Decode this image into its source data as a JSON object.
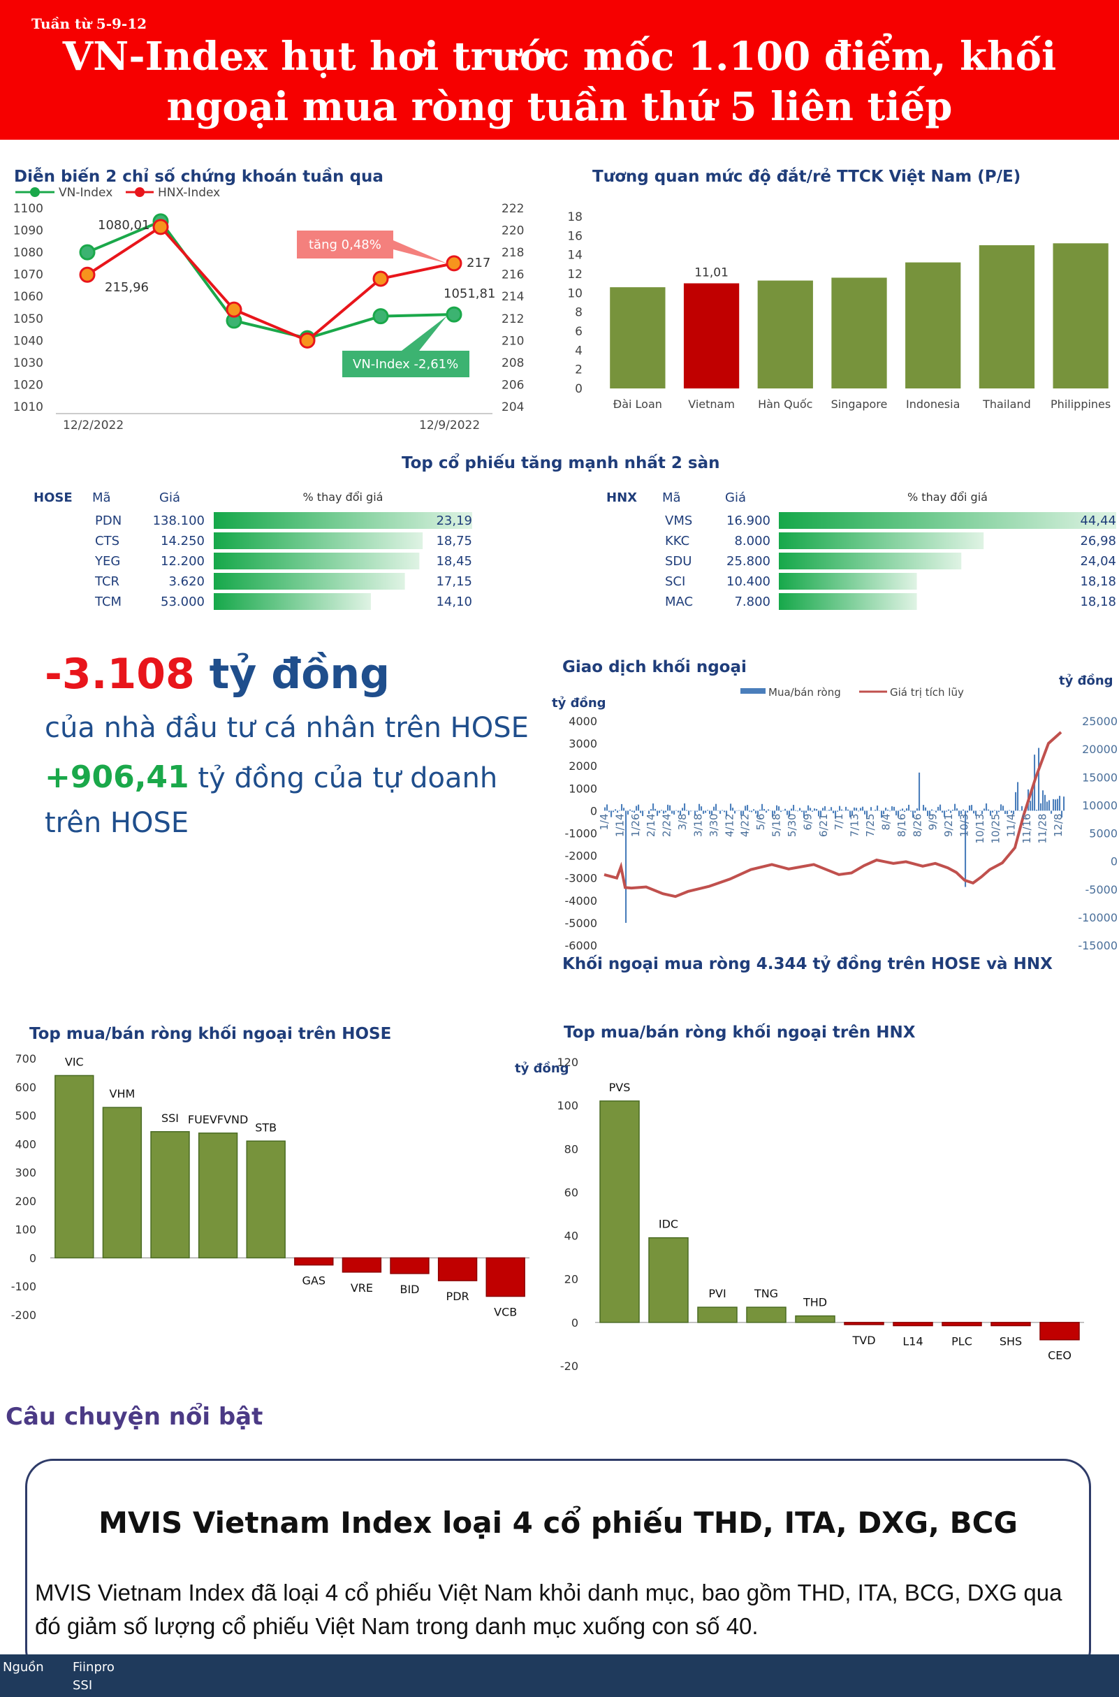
{
  "header": {
    "week": "Tuần từ 5-9-12",
    "title_line1": "VN-Index hụt hơi trước mốc 1.100 điểm, khối",
    "title_line2": "ngoại mua ròng tuần thứ 5 liên tiếp",
    "bg_color": "#f60000"
  },
  "index_chart": {
    "title": "Diễn biến 2 chỉ số chứng khoán tuần qua",
    "legend_vn": "VN-Index",
    "legend_hnx": "HNX-Index",
    "date_start": "12/2/2022",
    "date_end": "12/9/2022",
    "label_vn_start": "1080,01",
    "label_hnx_start": "215,96",
    "label_vn_end": "1051,81",
    "label_hnx_end": "217",
    "callout_hnx": "tăng 0,48%",
    "callout_vn": "VN-Index -2,61%",
    "left_ticks": [
      "1010",
      "1020",
      "1030",
      "1040",
      "1050",
      "1060",
      "1070",
      "1080",
      "1090",
      "1100"
    ],
    "right_ticks": [
      "204",
      "206",
      "208",
      "210",
      "212",
      "214",
      "216",
      "218",
      "220",
      "222"
    ]
  },
  "pe_chart": {
    "title": "Tương quan mức độ đắt/rẻ TTCK Việt Nam (P/E)",
    "value_label": "11,01",
    "ticks": [
      "0",
      "2",
      "4",
      "6",
      "8",
      "10",
      "12",
      "14",
      "16",
      "18"
    ]
  },
  "top_gainers": {
    "title": "Top cổ phiếu tăng mạnh nhất 2 sàn",
    "hose": {
      "exchange": "HOSE",
      "col_code": "Mã",
      "col_price": "Giá",
      "col_change": "% thay đổi giá",
      "rows": [
        {
          "code": "PDN",
          "price": "138.100",
          "change": "23,19",
          "pct": 23.19
        },
        {
          "code": "CTS",
          "price": "14.250",
          "change": "18,75",
          "pct": 18.75
        },
        {
          "code": "YEG",
          "price": "12.200",
          "change": "18,45",
          "pct": 18.45
        },
        {
          "code": "TCR",
          "price": "3.620",
          "change": "17,15",
          "pct": 17.15
        },
        {
          "code": "TCM",
          "price": "53.000",
          "change": "14,10",
          "pct": 14.1
        }
      ]
    },
    "hnx": {
      "exchange": "HNX",
      "col_code": "Mã",
      "col_price": "Giá",
      "col_change": "% thay đổi giá",
      "rows": [
        {
          "code": "VMS",
          "price": "16.900",
          "change": "44,44",
          "pct": 44.44
        },
        {
          "code": "KKC",
          "price": "8.000",
          "change": "26,98",
          "pct": 26.98
        },
        {
          "code": "SDU",
          "price": "25.800",
          "change": "24,04",
          "pct": 24.04
        },
        {
          "code": "SCI",
          "price": "10.400",
          "change": "18,18",
          "pct": 18.18
        },
        {
          "code": "MAC",
          "price": "7.800",
          "change": "18,18",
          "pct": 18.18
        }
      ]
    }
  },
  "highlights": {
    "amount_neg": "-3.108",
    "unit1": "tỷ đồng",
    "line1": "của nhà đầu tư cá nhân trên HOSE",
    "amount_pos": "+906,41",
    "line2a": "tỷ đồng của tự doanh",
    "line2b": "trên HOSE"
  },
  "foreign_flow": {
    "title": "Giao dịch khối ngoại",
    "legend_bar": "Mua/bán ròng",
    "legend_line": "Giá trị tích lũy",
    "unit_left": "tỷ đồng",
    "unit_right": "tỷ đồng",
    "subtitle": "Khối ngoại mua ròng 4.344 tỷ đồng trên HOSE và HNX",
    "left_ticks": [
      "-6000",
      "-5000",
      "-4000",
      "-3000",
      "-2000",
      "-1000",
      "0",
      "1000",
      "2000",
      "3000",
      "4000"
    ],
    "right_ticks": [
      "-15000",
      "-10000",
      "-5000",
      "0",
      "5000",
      "10000",
      "15000",
      "20000",
      "25000"
    ],
    "x_labels": [
      "1/4",
      "1/14",
      "1/26",
      "2/14",
      "2/24",
      "3/8",
      "3/18",
      "3/30",
      "4/12",
      "4/22",
      "5/6",
      "5/18",
      "5/30",
      "6/9",
      "6/21",
      "7/1",
      "7/13",
      "7/25",
      "8/4",
      "8/16",
      "8/26",
      "9/9",
      "9/21",
      "10/3",
      "10/13",
      "10/25",
      "11/4",
      "11/16",
      "11/28",
      "12/8"
    ]
  },
  "hose_foreign": {
    "title": "Top mua/bán ròng khối ngoại trên HOSE",
    "ticks": [
      "-200",
      "-100",
      "0",
      "100",
      "200",
      "300",
      "400",
      "500",
      "600",
      "700"
    ]
  },
  "hnx_foreign": {
    "title": "Top mua/bán ròng khối ngoại trên HNX",
    "unit": "tỷ đồng",
    "ticks": [
      "-20",
      "0",
      "20",
      "40",
      "60",
      "80",
      "100",
      "120"
    ]
  },
  "story": {
    "heading": "Câu chuyện nổi bật",
    "title": "MVIS Vietnam Index loại 4 cổ phiếu THD, ITA, DXG, BCG",
    "body": "MVIS Vietnam Index đã loại 4 cổ phiếu Việt Nam khỏi danh mục, bao gồm THD, ITA, BCG, DXG qua đó giảm số lượng cổ phiếu Việt Nam trong danh mục xuống con số 40."
  },
  "footer": {
    "label": "Nguồn",
    "source1": "Fiinpro",
    "source2": "SSI"
  },
  "chart_data": [
    {
      "type": "line",
      "title": "Diễn biến 2 chỉ số chứng khoán tuần qua",
      "x": [
        "12/2/2022",
        "12/5/2022",
        "12/6/2022",
        "12/7/2022",
        "12/8/2022",
        "12/9/2022"
      ],
      "series": [
        {
          "name": "VN-Index",
          "axis": "left",
          "values": [
            1080.01,
            1094,
            1049,
            1041,
            1051,
            1051.81
          ],
          "color": "#1aa84a"
        },
        {
          "name": "HNX-Index",
          "axis": "right",
          "values": [
            215.96,
            220.3,
            212.8,
            210,
            215.6,
            217
          ],
          "color": "#e8151b"
        }
      ],
      "ylim_left": [
        1010,
        1100
      ],
      "ylim_right": [
        204,
        222
      ]
    },
    {
      "type": "bar",
      "title": "Tương quan mức độ đắt/rẻ TTCK Việt Nam (P/E)",
      "categories": [
        "Đài Loan",
        "Vietnam",
        "Hàn Quốc",
        "Singapore",
        "Indonesia",
        "Thailand",
        "Philippines"
      ],
      "values": [
        10.6,
        11.01,
        11.3,
        11.6,
        13.2,
        15,
        15.2
      ],
      "ylim": [
        0,
        18
      ],
      "highlight": "Vietnam",
      "colors": {
        "default": "#77933c",
        "highlight": "#c00000"
      }
    },
    {
      "type": "bar",
      "title": "Top mua/bán ròng khối ngoại trên HOSE",
      "categories": [
        "VIC",
        "VHM",
        "SSI",
        "FUEVFVND",
        "STB",
        "GAS",
        "VRE",
        "BID",
        "PDR",
        "VCB"
      ],
      "values": [
        640,
        528,
        443,
        438,
        410,
        -25,
        -50,
        -55,
        -80,
        -135
      ],
      "ylim": [
        -200,
        700
      ]
    },
    {
      "type": "bar",
      "title": "Top mua/bán ròng khối ngoại trên HNX",
      "categories": [
        "PVS",
        "IDC",
        "PVI",
        "TNG",
        "THD",
        "TVD",
        "L14",
        "PLC",
        "SHS",
        "CEO"
      ],
      "values": [
        102,
        39,
        7,
        7,
        3,
        -1,
        -1.5,
        -1.5,
        -1.5,
        -8
      ],
      "ylim": [
        -20,
        120
      ]
    },
    {
      "type": "bar",
      "title": "Giao dịch khối ngoại",
      "note": "daily net buy/sell bars (left axis) with cumulative line (right axis)",
      "cumulative_anchors": [
        [
          0,
          -2400
        ],
        [
          6,
          -3000
        ],
        [
          8,
          -1000
        ],
        [
          10,
          -4700
        ],
        [
          13,
          -4800
        ],
        [
          20,
          -4600
        ],
        [
          28,
          -5800
        ],
        [
          34,
          -6300
        ],
        [
          40,
          -5400
        ],
        [
          50,
          -4500
        ],
        [
          60,
          -3200
        ],
        [
          70,
          -1500
        ],
        [
          80,
          -600
        ],
        [
          88,
          -1400
        ],
        [
          94,
          -1000
        ],
        [
          100,
          -600
        ],
        [
          108,
          -1800
        ],
        [
          112,
          -2400
        ],
        [
          118,
          -2100
        ],
        [
          124,
          -800
        ],
        [
          130,
          200
        ],
        [
          138,
          -400
        ],
        [
          144,
          -100
        ],
        [
          152,
          -900
        ],
        [
          158,
          -400
        ],
        [
          164,
          -1200
        ],
        [
          168,
          -2000
        ],
        [
          172,
          -3400
        ],
        [
          176,
          -3900
        ],
        [
          180,
          -2800
        ],
        [
          184,
          -1500
        ],
        [
          190,
          -300
        ],
        [
          196,
          2400
        ],
        [
          200,
          8000
        ],
        [
          206,
          15000
        ],
        [
          212,
          21000
        ],
        [
          218,
          23000
        ]
      ],
      "ylim_left": [
        -6000,
        4000
      ],
      "ylim_right": [
        -15000,
        25000
      ]
    }
  ]
}
